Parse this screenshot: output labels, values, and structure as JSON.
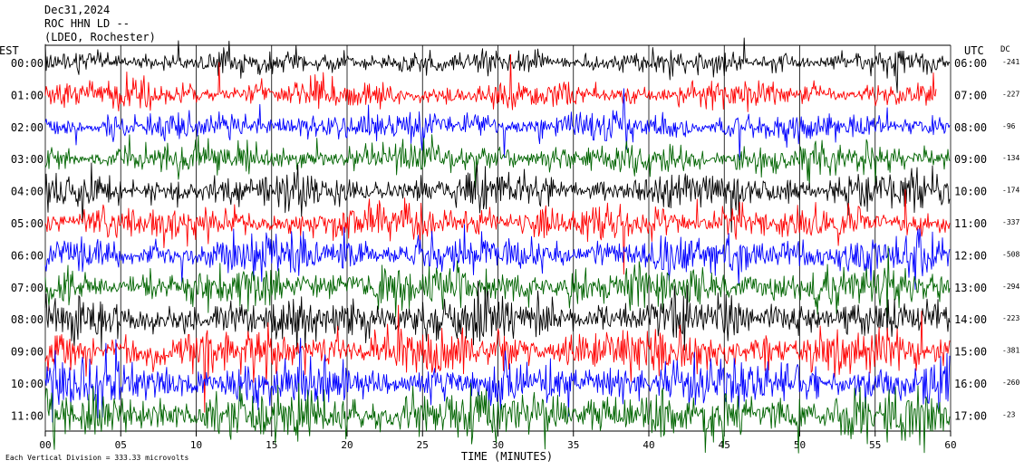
{
  "header": {
    "date": "Dec31,2024",
    "station": "ROC HHN LD --",
    "network": "(LDEO, Rochester)"
  },
  "chart_data": {
    "type": "line",
    "left_axis_title": "EST",
    "right_axis_title": "UTC",
    "dc_title": "DC",
    "xlabel": "TIME (MINUTES)",
    "x_ticks": [
      "00",
      "05",
      "10",
      "15",
      "20",
      "25",
      "30",
      "35",
      "40",
      "45",
      "50",
      "55",
      "60"
    ],
    "xlim": [
      0,
      60
    ],
    "scale_note": "Each Vertical Division =  333.33 microvolts",
    "trace_colors": [
      "#000000",
      "#ff0000",
      "#0000ff",
      "#006400"
    ],
    "rows": [
      {
        "est": "00:00",
        "utc": "06:00",
        "dc": "-241"
      },
      {
        "est": "01:00",
        "utc": "07:00",
        "dc": "-227"
      },
      {
        "est": "02:00",
        "utc": "08:00",
        "dc": "-96"
      },
      {
        "est": "03:00",
        "utc": "09:00",
        "dc": "-134"
      },
      {
        "est": "04:00",
        "utc": "10:00",
        "dc": "-174"
      },
      {
        "est": "05:00",
        "utc": "11:00",
        "dc": "-337"
      },
      {
        "est": "06:00",
        "utc": "12:00",
        "dc": "-508"
      },
      {
        "est": "07:00",
        "utc": "13:00",
        "dc": "-294"
      },
      {
        "est": "08:00",
        "utc": "14:00",
        "dc": "-223"
      },
      {
        "est": "09:00",
        "utc": "15:00",
        "dc": "-381"
      },
      {
        "est": "10:00",
        "utc": "16:00",
        "dc": "-260"
      },
      {
        "est": "11:00",
        "utc": "17:00",
        "dc": "-23"
      }
    ]
  }
}
